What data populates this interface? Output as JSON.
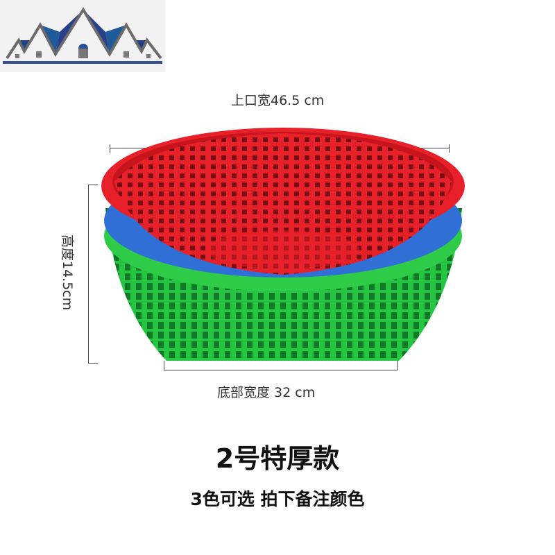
{
  "logo": {
    "icon": "house-roofs-logo",
    "colors": {
      "roof": "#1f4f8f",
      "outline": "#6b6b6b",
      "bar": "#3a4f86"
    }
  },
  "dimensions": {
    "top_width": "上口宽46.5 cm",
    "height": "高度14.5cm",
    "bottom_width": "底部宽度 32 cm"
  },
  "product": {
    "title": "2号特厚款",
    "subtitle": "3色可选 拍下备注颜色",
    "colors": [
      "#e8202a",
      "#2f6fd6",
      "#2fcc4a"
    ]
  }
}
